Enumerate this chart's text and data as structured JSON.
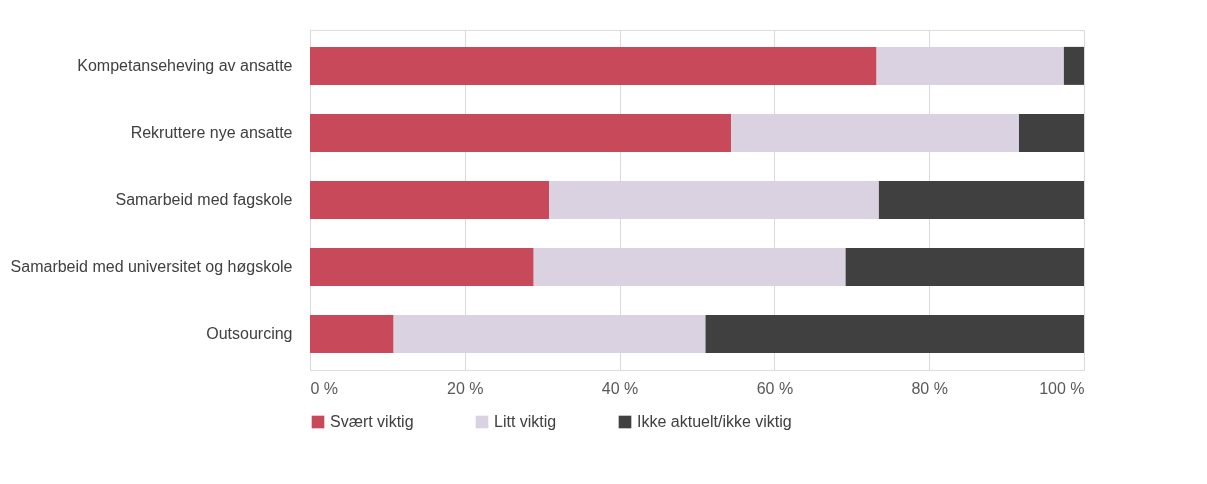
{
  "chart_data": {
    "type": "bar",
    "orientation": "horizontal",
    "stacked": true,
    "categories": [
      "Kompetanseheving av ansatte",
      "Rekruttere nye ansatte",
      "Samarbeid med fagskole",
      "Samarbeid med universitet og høgskole",
      "Outsourcing"
    ],
    "series": [
      {
        "name": "Svært viktig",
        "color": "#c84a5a",
        "values": [
          73.2,
          54.4,
          30.9,
          28.9,
          10.8
        ]
      },
      {
        "name": "Litt viktig",
        "color": "#dad2e0",
        "values": [
          24.2,
          37.2,
          42.6,
          40.3,
          40.3
        ]
      },
      {
        "name": "Ikke aktuelt/ikke viktig",
        "color": "#404040",
        "values": [
          2.6,
          8.4,
          26.5,
          30.8,
          48.9
        ]
      }
    ],
    "xlim": [
      0,
      100
    ],
    "xticks": [
      {
        "value": 0,
        "label": "0 %"
      },
      {
        "value": 20,
        "label": "20 %"
      },
      {
        "value": 40,
        "label": "40 %"
      },
      {
        "value": 60,
        "label": "60 %"
      },
      {
        "value": 80,
        "label": "80 %"
      },
      {
        "value": 100,
        "label": "100 %"
      }
    ],
    "grid": "x",
    "legend": "bottom"
  }
}
